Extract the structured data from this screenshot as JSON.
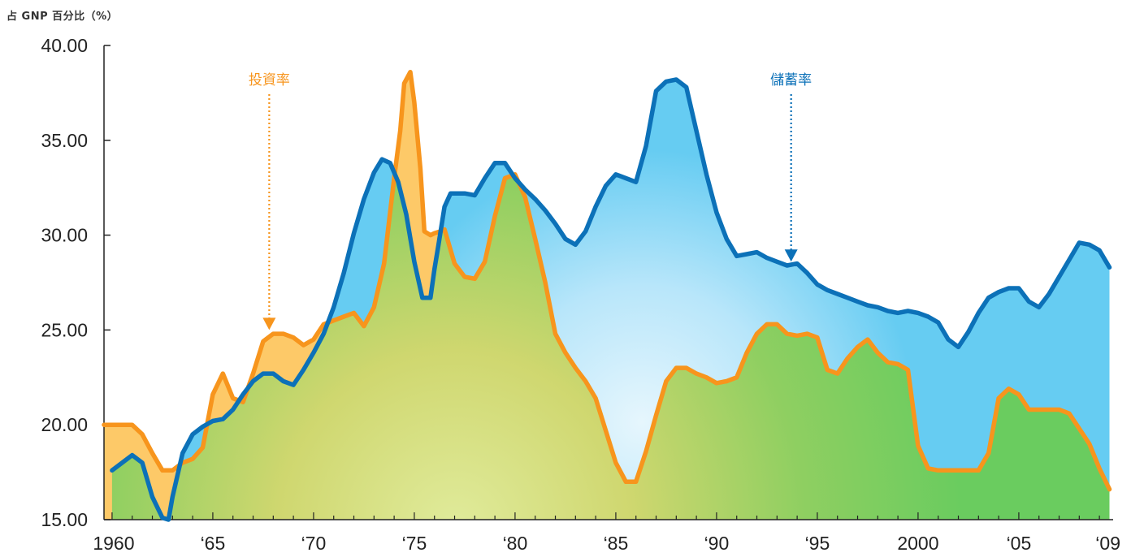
{
  "unit_label": "占 GNP 百分比（%）",
  "colors": {
    "savings_line": "#0c71b8",
    "savings_fill": "#66ccf2",
    "investment_line": "#f7951d",
    "investment_fill": "#fdc968",
    "overlap_fill": "#6acc5f",
    "axis": "#222222"
  },
  "chart_data": {
    "type": "area",
    "ylim": [
      15,
      40
    ],
    "xlim": [
      1959.6,
      2009.6
    ],
    "y_ticks": [
      15,
      20,
      25,
      30,
      35,
      40
    ],
    "y_tick_labels": [
      "15.00",
      "20.00",
      "25.00",
      "30.00",
      "35.00",
      "40.00"
    ],
    "x_ticks": [
      1960,
      1965,
      1970,
      1975,
      1980,
      1985,
      1990,
      1995,
      2000,
      2005,
      2009.6
    ],
    "x_tick_labels": [
      "1960",
      "‘65",
      "‘70",
      "‘75",
      "‘80",
      "‘85",
      "‘90",
      "‘95",
      "2000",
      "‘05",
      "‘09"
    ],
    "grid": false,
    "annotations": [
      {
        "text": "投資率",
        "series": "investment",
        "x": 1967.8,
        "y": 25.0
      },
      {
        "text": "儲蓄率",
        "series": "savings",
        "x": 1993.7,
        "y": 28.6
      }
    ],
    "series": [
      {
        "key": "savings",
        "name": "儲蓄率",
        "x": [
          1960.0,
          1960.5,
          1961.0,
          1961.5,
          1962.0,
          1962.5,
          1962.8,
          1963.0,
          1963.5,
          1964.0,
          1964.5,
          1965.0,
          1965.5,
          1966.0,
          1966.5,
          1967.0,
          1967.5,
          1968.0,
          1968.5,
          1969.0,
          1969.5,
          1970.0,
          1970.5,
          1971.0,
          1971.5,
          1972.0,
          1972.5,
          1973.0,
          1973.4,
          1973.8,
          1974.2,
          1974.6,
          1975.0,
          1975.4,
          1975.8,
          1976.0,
          1976.2,
          1976.5,
          1976.8,
          1977.0,
          1977.5,
          1978.0,
          1978.5,
          1979.0,
          1979.5,
          1980.0,
          1980.5,
          1981.0,
          1981.5,
          1982.0,
          1982.5,
          1983.0,
          1983.5,
          1984.0,
          1984.5,
          1985.0,
          1985.5,
          1986.0,
          1986.5,
          1987.0,
          1987.5,
          1988.0,
          1988.5,
          1989.0,
          1989.5,
          1990.0,
          1990.5,
          1991.0,
          1991.5,
          1992.0,
          1992.5,
          1993.0,
          1993.5,
          1994.0,
          1994.5,
          1995.0,
          1995.5,
          1996.0,
          1996.5,
          1997.0,
          1997.5,
          1998.0,
          1998.5,
          1999.0,
          1999.5,
          2000.0,
          2000.5,
          2001.0,
          2001.5,
          2002.0,
          2002.5,
          2003.0,
          2003.5,
          2004.0,
          2004.5,
          2005.0,
          2005.5,
          2006.0,
          2006.5,
          2007.0,
          2007.5,
          2008.0,
          2008.5,
          2009.0,
          2009.5
        ],
        "values": [
          17.6,
          18.0,
          18.4,
          18.0,
          16.2,
          15.1,
          15.0,
          16.2,
          18.5,
          19.5,
          19.9,
          20.2,
          20.3,
          20.8,
          21.6,
          22.3,
          22.7,
          22.7,
          22.3,
          22.1,
          22.9,
          23.8,
          24.8,
          26.2,
          28.0,
          30.1,
          31.9,
          33.3,
          34.0,
          33.8,
          32.8,
          31.1,
          28.6,
          26.7,
          26.7,
          28.2,
          29.5,
          31.5,
          32.2,
          32.2,
          32.2,
          32.1,
          33.0,
          33.8,
          33.8,
          33.0,
          32.4,
          31.9,
          31.3,
          30.6,
          29.8,
          29.5,
          30.2,
          31.5,
          32.6,
          33.2,
          33.0,
          32.8,
          34.7,
          37.6,
          38.1,
          38.2,
          37.8,
          35.5,
          33.2,
          31.2,
          29.8,
          28.9,
          29.0,
          29.1,
          28.8,
          28.6,
          28.4,
          28.5,
          28.0,
          27.4,
          27.1,
          26.9,
          26.7,
          26.5,
          26.3,
          26.2,
          26.0,
          25.9,
          26.0,
          25.9,
          25.7,
          25.4,
          24.5,
          24.1,
          24.9,
          25.9,
          26.7,
          27.0,
          27.2,
          27.2,
          26.5,
          26.2,
          26.9,
          27.8,
          28.7,
          29.6,
          29.5,
          29.2,
          28.3
        ]
      },
      {
        "key": "investment",
        "name": "投資率",
        "x": [
          1959.6,
          1960.0,
          1960.5,
          1961.0,
          1961.5,
          1962.0,
          1962.5,
          1963.0,
          1963.5,
          1964.0,
          1964.5,
          1965.0,
          1965.5,
          1966.0,
          1966.5,
          1967.0,
          1967.5,
          1968.0,
          1968.5,
          1969.0,
          1969.5,
          1970.0,
          1970.5,
          1971.0,
          1971.5,
          1972.0,
          1972.5,
          1973.0,
          1973.5,
          1974.0,
          1974.3,
          1974.5,
          1974.8,
          1975.0,
          1975.3,
          1975.5,
          1975.8,
          1976.0,
          1976.3,
          1976.5,
          1977.0,
          1977.5,
          1978.0,
          1978.5,
          1979.0,
          1979.5,
          1980.0,
          1980.5,
          1981.0,
          1981.5,
          1982.0,
          1982.5,
          1983.0,
          1983.5,
          1984.0,
          1984.5,
          1985.0,
          1985.5,
          1986.0,
          1986.5,
          1987.0,
          1987.5,
          1988.0,
          1988.5,
          1989.0,
          1989.5,
          1990.0,
          1990.5,
          1991.0,
          1991.5,
          1992.0,
          1992.5,
          1993.0,
          1993.5,
          1994.0,
          1994.5,
          1995.0,
          1995.5,
          1996.0,
          1996.5,
          1997.0,
          1997.5,
          1998.0,
          1998.5,
          1999.0,
          1999.5,
          2000.0,
          2000.5,
          2001.0,
          2001.5,
          2002.0,
          2002.5,
          2003.0,
          2003.5,
          2004.0,
          2004.5,
          2005.0,
          2005.5,
          2006.0,
          2006.5,
          2007.0,
          2007.5,
          2008.0,
          2008.5,
          2009.0,
          2009.5
        ],
        "values": [
          20.0,
          20.0,
          20.0,
          20.0,
          19.5,
          18.5,
          17.6,
          17.6,
          18.0,
          18.2,
          18.8,
          21.6,
          22.7,
          21.4,
          21.2,
          22.7,
          24.4,
          24.8,
          24.8,
          24.6,
          24.2,
          24.5,
          25.3,
          25.5,
          25.7,
          25.9,
          25.2,
          26.2,
          28.5,
          33.0,
          35.5,
          38.0,
          38.6,
          37.0,
          33.5,
          30.2,
          30.0,
          30.1,
          30.2,
          30.3,
          28.5,
          27.8,
          27.7,
          28.6,
          31.0,
          33.0,
          33.2,
          32.0,
          29.8,
          27.5,
          24.8,
          23.8,
          23.0,
          22.3,
          21.4,
          19.7,
          18.0,
          17.0,
          17.0,
          18.6,
          20.5,
          22.3,
          23.0,
          23.0,
          22.7,
          22.5,
          22.2,
          22.3,
          22.5,
          23.8,
          24.8,
          25.3,
          25.3,
          24.8,
          24.7,
          24.8,
          24.6,
          22.9,
          22.7,
          23.5,
          24.1,
          24.5,
          23.8,
          23.3,
          23.2,
          22.9,
          18.9,
          17.7,
          17.6,
          17.6,
          17.6,
          17.6,
          17.6,
          18.5,
          21.4,
          21.9,
          21.6,
          20.8,
          20.8,
          20.8,
          20.8,
          20.6,
          19.8,
          19.0,
          17.7,
          16.6
        ]
      }
    ]
  }
}
